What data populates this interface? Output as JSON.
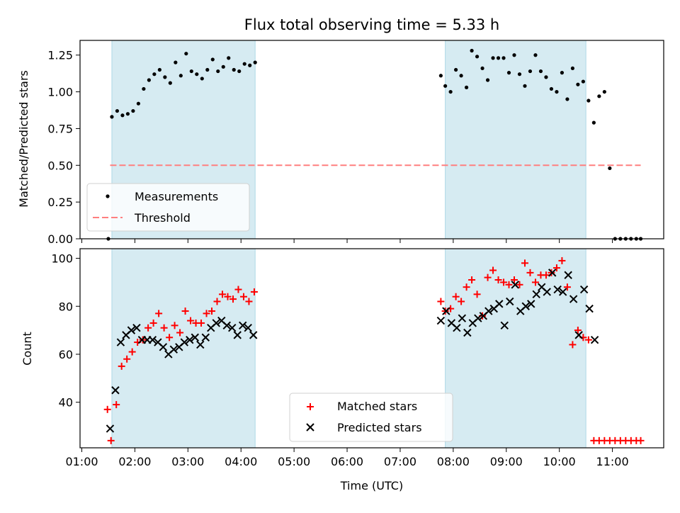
{
  "chart_data": [
    {
      "type": "scatter",
      "title": "Flux total observing time = 5.33 h",
      "xlabel": "",
      "ylabel": "Matched/Predicted stars",
      "xlim": [
        "00:58",
        "11:58"
      ],
      "ylim": [
        0,
        1.35
      ],
      "yticks": [
        "0.00",
        "0.25",
        "0.50",
        "0.75",
        "1.00",
        "1.25"
      ],
      "shaded_intervals": [
        [
          "01:34",
          "04:16"
        ],
        [
          "07:51",
          "10:30"
        ]
      ],
      "threshold": {
        "name": "Threshold",
        "value": 0.5,
        "x_range": [
          "01:32",
          "11:32"
        ],
        "color": "#ff7f7f"
      },
      "legend": {
        "position": "lower-left",
        "entries": [
          "Measurements",
          "Threshold"
        ]
      },
      "series": [
        {
          "name": "Measurements",
          "color": "#000000",
          "x": [
            "01:30",
            "01:34",
            "01:40",
            "01:46",
            "01:52",
            "01:58",
            "02:04",
            "02:10",
            "02:16",
            "02:22",
            "02:28",
            "02:34",
            "02:40",
            "02:46",
            "02:52",
            "02:58",
            "03:04",
            "03:10",
            "03:16",
            "03:22",
            "03:28",
            "03:34",
            "03:40",
            "03:46",
            "03:52",
            "03:58",
            "04:04",
            "04:10",
            "04:16",
            "07:46",
            "07:51",
            "07:57",
            "08:03",
            "08:09",
            "08:15",
            "08:21",
            "08:27",
            "08:33",
            "08:39",
            "08:45",
            "08:51",
            "08:57",
            "09:03",
            "09:09",
            "09:15",
            "09:21",
            "09:27",
            "09:33",
            "09:39",
            "09:45",
            "09:51",
            "09:57",
            "10:03",
            "10:09",
            "10:15",
            "10:21",
            "10:27",
            "10:33",
            "10:39",
            "10:45",
            "10:51",
            "10:57",
            "11:03",
            "11:09",
            "11:15",
            "11:21",
            "11:27",
            "11:32"
          ],
          "y": [
            0.0,
            0.83,
            0.87,
            0.84,
            0.85,
            0.87,
            0.92,
            1.02,
            1.08,
            1.12,
            1.15,
            1.1,
            1.06,
            1.2,
            1.11,
            1.26,
            1.14,
            1.12,
            1.09,
            1.15,
            1.22,
            1.14,
            1.17,
            1.23,
            1.15,
            1.14,
            1.19,
            1.18,
            1.2,
            1.11,
            1.04,
            1.0,
            1.15,
            1.11,
            1.03,
            1.28,
            1.24,
            1.16,
            1.08,
            1.23,
            1.23,
            1.23,
            1.13,
            1.25,
            1.12,
            1.04,
            1.14,
            1.25,
            1.14,
            1.1,
            1.02,
            1.0,
            1.13,
            0.95,
            1.16,
            1.05,
            1.07,
            0.94,
            0.79,
            0.97,
            1.0,
            0.48,
            0.0,
            0.0,
            0.0,
            0.0,
            0.0,
            0.0
          ]
        }
      ]
    },
    {
      "type": "scatter",
      "title": "",
      "xlabel": "Time (UTC)",
      "ylabel": "Count",
      "xlim": [
        "00:58",
        "11:58"
      ],
      "ylim": [
        21,
        104
      ],
      "yticks": [
        "40",
        "60",
        "80",
        "100"
      ],
      "xticks": [
        "01:00",
        "02:00",
        "03:00",
        "04:00",
        "05:00",
        "06:00",
        "07:00",
        "08:00",
        "09:00",
        "10:00",
        "11:00"
      ],
      "shaded_intervals": [
        [
          "01:34",
          "04:16"
        ],
        [
          "07:51",
          "10:30"
        ]
      ],
      "legend": {
        "position": "lower-center",
        "entries": [
          "Matched stars",
          "Predicted stars"
        ]
      },
      "series": [
        {
          "name": "Matched stars",
          "color": "#ff0000",
          "marker": "+",
          "x": [
            "01:29",
            "01:33",
            "01:39",
            "01:45",
            "01:51",
            "01:57",
            "02:03",
            "02:09",
            "02:15",
            "02:21",
            "02:27",
            "02:33",
            "02:39",
            "02:45",
            "02:51",
            "02:57",
            "03:03",
            "03:09",
            "03:15",
            "03:21",
            "03:27",
            "03:33",
            "03:39",
            "03:45",
            "03:51",
            "03:57",
            "04:03",
            "04:09",
            "04:15",
            "07:46",
            "07:51",
            "07:57",
            "08:03",
            "08:09",
            "08:15",
            "08:21",
            "08:27",
            "08:33",
            "08:39",
            "08:45",
            "08:51",
            "08:57",
            "09:03",
            "09:09",
            "09:15",
            "09:21",
            "09:27",
            "09:33",
            "09:39",
            "09:45",
            "09:51",
            "09:57",
            "10:03",
            "10:09",
            "10:15",
            "10:21",
            "10:27",
            "10:33",
            "10:39",
            "10:45",
            "10:51",
            "10:57",
            "11:03",
            "11:09",
            "11:15",
            "11:21",
            "11:27",
            "11:32"
          ],
          "y": [
            37,
            24,
            39,
            55,
            58,
            61,
            65,
            66,
            71,
            73,
            77,
            71,
            67,
            72,
            69,
            78,
            74,
            73,
            73,
            77,
            78,
            82,
            85,
            84,
            83,
            87,
            84,
            82,
            86,
            82,
            78,
            79,
            84,
            82,
            88,
            91,
            85,
            76,
            92,
            95,
            91,
            90,
            89,
            91,
            89,
            98,
            94,
            90,
            93,
            93,
            94,
            96,
            99,
            88,
            64,
            70,
            67,
            66,
            24,
            24,
            24,
            24,
            24,
            24,
            24,
            24,
            24,
            24
          ]
        },
        {
          "name": "Predicted stars",
          "color": "#000000",
          "marker": "x",
          "x": [
            "01:32",
            "01:38",
            "01:44",
            "01:50",
            "01:56",
            "02:02",
            "02:08",
            "02:14",
            "02:20",
            "02:26",
            "02:32",
            "02:38",
            "02:44",
            "02:50",
            "02:56",
            "03:02",
            "03:08",
            "03:14",
            "03:20",
            "03:26",
            "03:32",
            "03:38",
            "03:44",
            "03:50",
            "03:56",
            "04:02",
            "04:08",
            "04:14",
            "07:46",
            "07:52",
            "07:58",
            "08:04",
            "08:10",
            "08:16",
            "08:22",
            "08:28",
            "08:34",
            "08:40",
            "08:46",
            "08:52",
            "08:58",
            "09:04",
            "09:10",
            "09:16",
            "09:22",
            "09:28",
            "09:34",
            "09:40",
            "09:46",
            "09:52",
            "09:58",
            "10:04",
            "10:10",
            "10:16",
            "10:22",
            "10:28",
            "10:34",
            "10:40"
          ],
          "y": [
            29,
            45,
            65,
            68,
            70,
            71,
            66,
            66,
            66,
            65,
            63,
            60,
            62,
            63,
            65,
            66,
            67,
            64,
            67,
            71,
            73,
            74,
            72,
            71,
            68,
            72,
            71,
            68,
            74,
            78,
            73,
            71,
            75,
            69,
            73,
            75,
            76,
            78,
            79,
            81,
            72,
            82,
            89,
            78,
            80,
            81,
            85,
            88,
            86,
            94,
            87,
            86,
            93,
            83,
            68,
            87,
            79,
            66
          ]
        }
      ]
    }
  ]
}
